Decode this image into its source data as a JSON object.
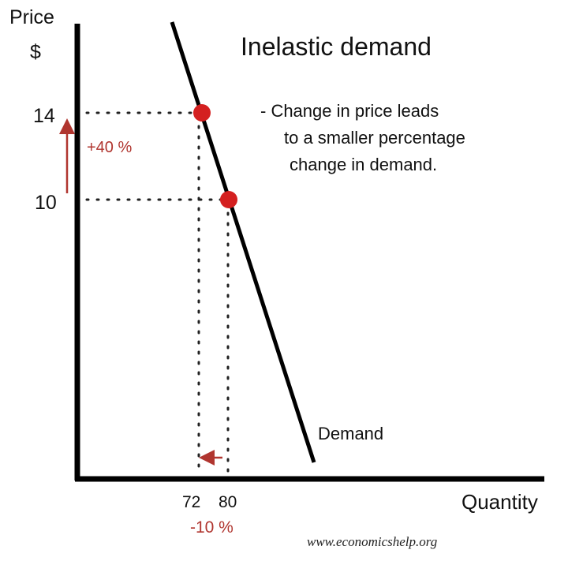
{
  "title": "Inelastic demand",
  "description": {
    "line1": "- Change in price leads",
    "line2": "to a smaller percentage",
    "line3": "change in demand."
  },
  "axes": {
    "y_label_line1": "Price",
    "y_label_line2": "$",
    "x_label": "Quantity",
    "y_ticks": [
      "14",
      "10"
    ],
    "x_ticks": [
      "72",
      "80"
    ]
  },
  "curve_label": "Demand",
  "price_change": "+40 %",
  "quantity_change": "-10 %",
  "points": [
    {
      "price": 14,
      "quantity": 72
    },
    {
      "price": 10,
      "quantity": 80
    }
  ],
  "website": "www.economicshelp.org",
  "colors": {
    "axis": "#000000",
    "point": "#d42020",
    "annotation": "#b0352f"
  }
}
